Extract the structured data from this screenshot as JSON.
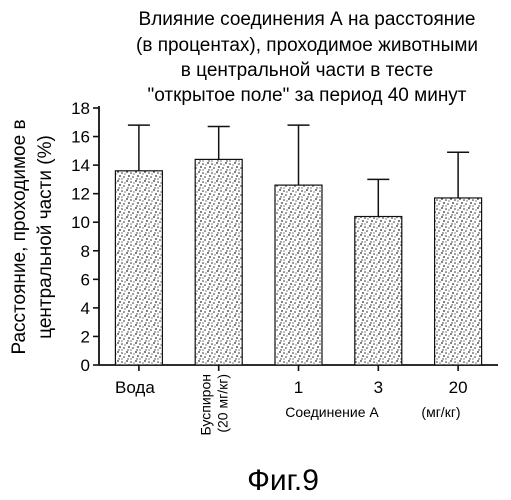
{
  "chart_data": {
    "type": "bar",
    "title": [
      "Влияние соединения А на расстояние",
      "(в процентах), проходимое животными",
      "в центральной части в тесте",
      "\"открытое поле\" за период 40 минут"
    ],
    "ylabel": [
      "Расстояние, проходимое в",
      "центральной части (%)"
    ],
    "xlabel_group": "Соединение А",
    "xlabel_units": "(мг/кг)",
    "categories": [
      {
        "label": "Вода"
      },
      {
        "label": "Буспирон",
        "label2": "(20 мг/кг)"
      },
      {
        "label": "1"
      },
      {
        "label": "3"
      },
      {
        "label": "20"
      }
    ],
    "values": [
      13.6,
      14.4,
      12.6,
      10.4,
      11.7
    ],
    "error_upper": [
      16.8,
      16.7,
      16.8,
      13.0,
      14.9
    ],
    "yticks": [
      0,
      2,
      4,
      6,
      8,
      10,
      12,
      14,
      16,
      18
    ],
    "ylim": [
      0,
      18
    ],
    "grid": false,
    "bar_fill": "stippled",
    "colors": {
      "ink": "#111111",
      "stipple": "#2a2a2a",
      "background": "#ffffff"
    }
  },
  "figure_caption": "Фиг.9"
}
